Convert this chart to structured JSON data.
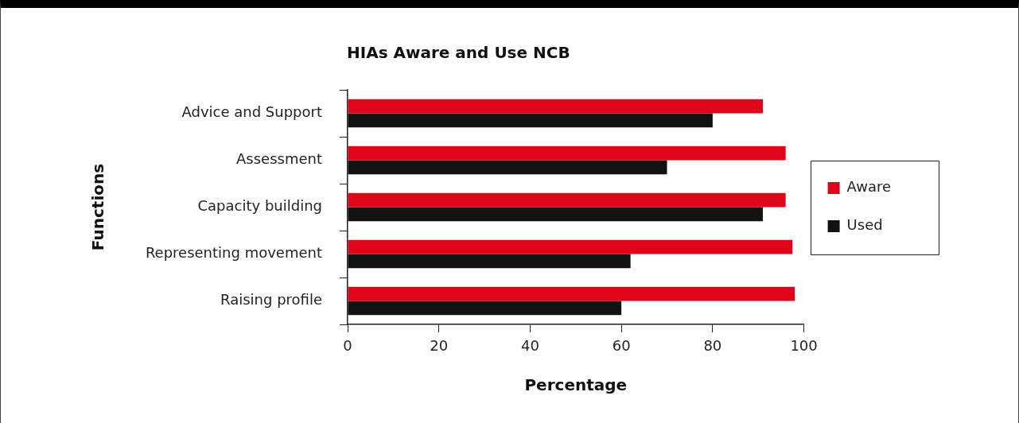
{
  "chart_data": {
    "type": "bar",
    "orientation": "horizontal",
    "title": "HIAs Aware and Use NCB",
    "xlabel": "Percentage",
    "ylabel": "Functions",
    "categories": [
      "Advice and Support",
      "Assessment",
      "Capacity building",
      "Representing movement",
      "Raising profile"
    ],
    "series": [
      {
        "name": "Aware",
        "color": "#e0041b",
        "values": [
          91,
          96,
          96,
          97.5,
          98
        ]
      },
      {
        "name": "Used",
        "color": "#121212",
        "values": [
          80,
          70,
          91,
          62,
          60
        ]
      }
    ],
    "xlim": [
      0,
      100
    ],
    "xticks": [
      0,
      20,
      40,
      60,
      80,
      100
    ],
    "grid": false,
    "legend": "right"
  }
}
